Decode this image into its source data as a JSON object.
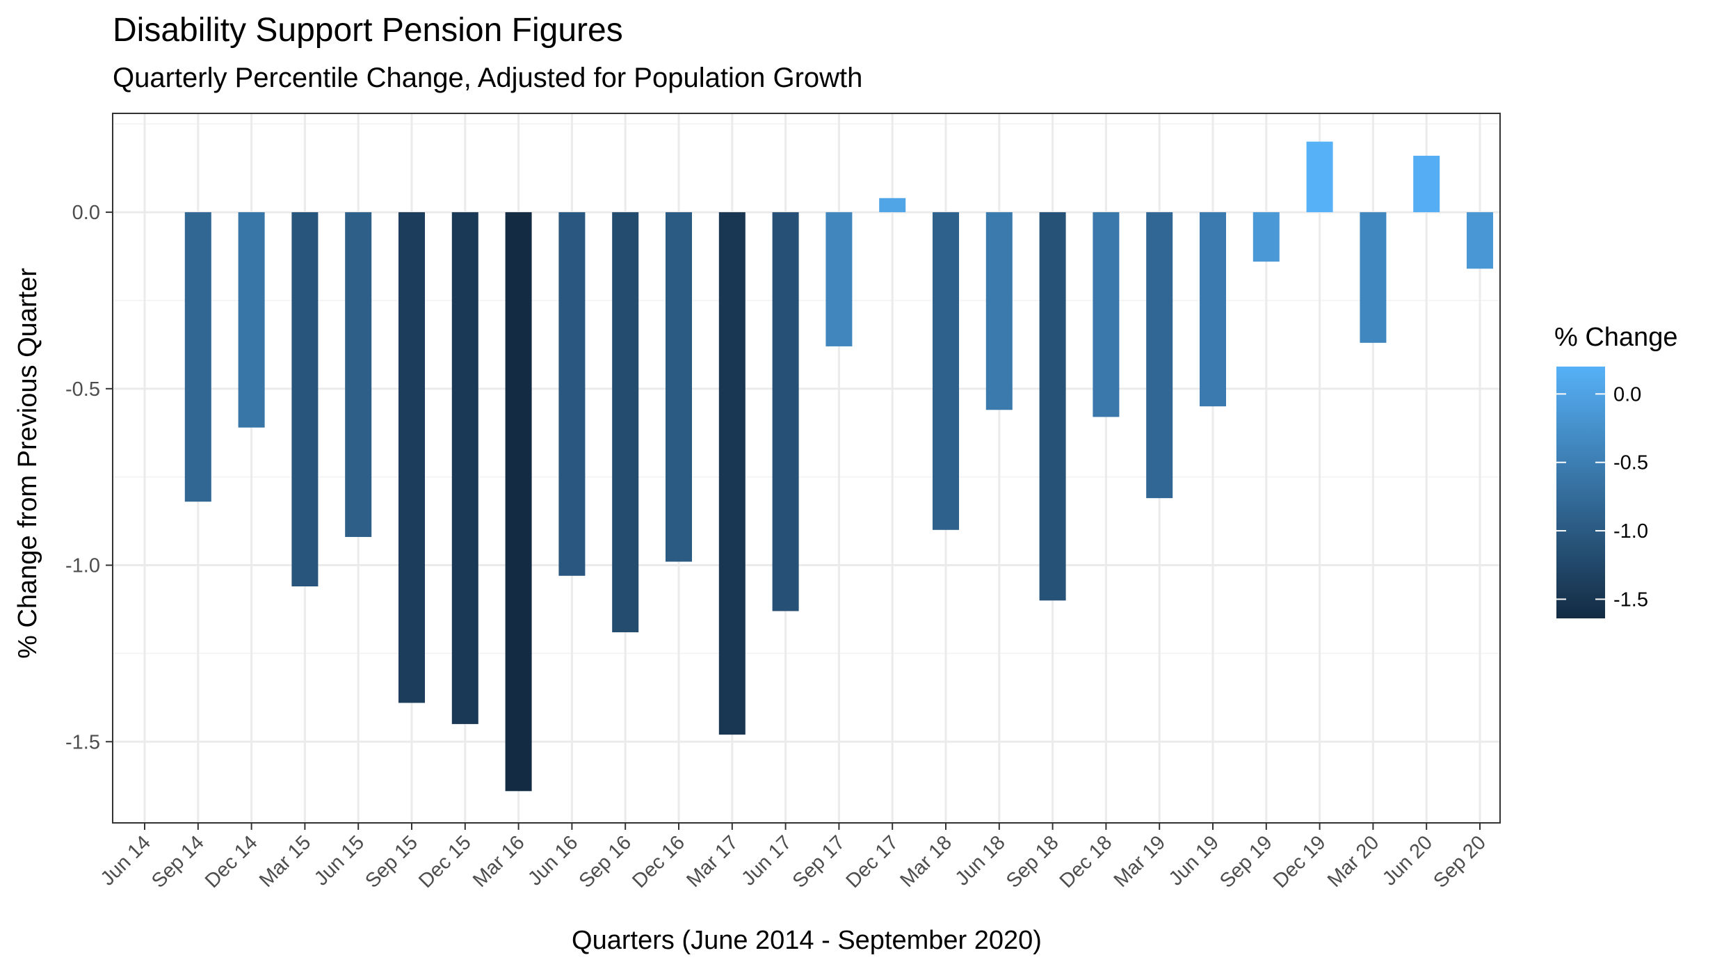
{
  "chart_data": {
    "type": "bar",
    "title": "Disability Support Pension Figures",
    "subtitle": "Quarterly Percentile Change, Adjusted for Population Growth",
    "xlabel": "Quarters (June 2014 - September 2020)",
    "ylabel": "% Change from Previous Quarter",
    "categories": [
      "Jun 14",
      "Sep 14",
      "Dec 14",
      "Mar 15",
      "Jun 15",
      "Sep 15",
      "Dec 15",
      "Mar 16",
      "Jun 16",
      "Sep 16",
      "Dec 16",
      "Mar 17",
      "Jun 17",
      "Sep 17",
      "Dec 17",
      "Mar 18",
      "Jun 18",
      "Sep 18",
      "Dec 18",
      "Mar 19",
      "Jun 19",
      "Sep 19",
      "Dec 19",
      "Mar 20",
      "Jun 20",
      "Sep 20"
    ],
    "values": [
      null,
      -0.82,
      -0.61,
      -1.06,
      -0.92,
      -1.39,
      -1.45,
      -1.64,
      -1.03,
      -1.19,
      -0.99,
      -1.48,
      -1.13,
      -0.38,
      0.04,
      -0.9,
      -0.56,
      -1.1,
      -0.58,
      -0.81,
      -0.55,
      -0.14,
      0.2,
      -0.37,
      0.16,
      -0.16
    ],
    "ylim": [
      -1.73,
      0.28
    ],
    "y_ticks": [
      0.0,
      -0.5,
      -1.0,
      -1.5
    ],
    "y_tick_labels": [
      "0.0",
      "-0.5",
      "-1.0",
      "-1.5"
    ],
    "grid": true,
    "legend": {
      "title": "% Change",
      "placement": "right",
      "type": "colorbar",
      "range": [
        -1.64,
        0.2
      ],
      "ticks": [
        0.0,
        -0.5,
        -1.0,
        -1.5
      ],
      "tick_labels": [
        "0.0",
        "-0.5",
        "-1.0",
        "-1.5"
      ],
      "low_color": "#132B43",
      "high_color": "#56B1F7"
    }
  }
}
